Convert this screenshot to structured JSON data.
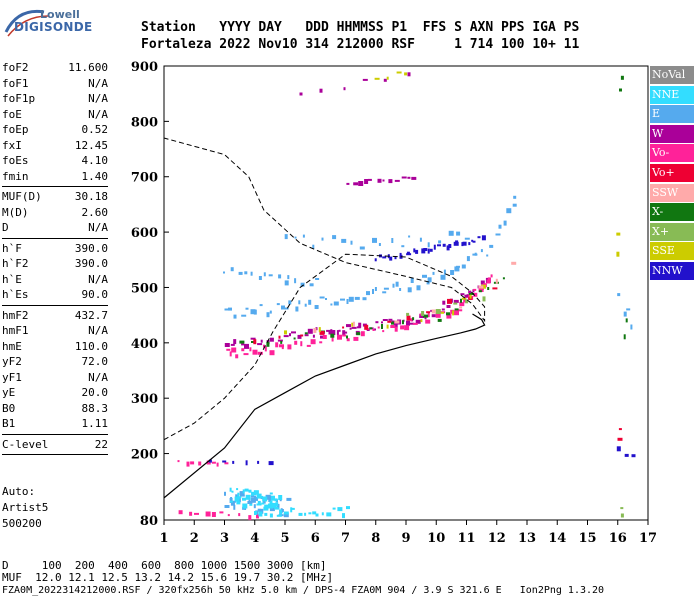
{
  "logo": {
    "top": "Lowell",
    "bottom": "DIGISONDE"
  },
  "header": {
    "line1": "Station   YYYY DAY   DDD HHMMSS P1  FFS S AXN PPS IGA PS",
    "line2": "Fortaleza 2022 Nov10 314 212000 RSF     1 714 100 10+ 11"
  },
  "params": {
    "group1": [
      {
        "label": "foF2",
        "value": "11.600"
      },
      {
        "label": "foF1",
        "value": "N/A"
      },
      {
        "label": "foF1p",
        "value": "N/A"
      },
      {
        "label": "foE",
        "value": "N/A"
      },
      {
        "label": "foEp",
        "value": "0.52"
      },
      {
        "label": "fxI",
        "value": "12.45"
      },
      {
        "label": "foEs",
        "value": "4.10"
      },
      {
        "label": "fmin",
        "value": "1.40"
      }
    ],
    "group2": [
      {
        "label": "MUF(D)",
        "value": "30.18"
      },
      {
        "label": "M(D)",
        "value": "2.60"
      },
      {
        "label": "D",
        "value": "N/A"
      }
    ],
    "group3": [
      {
        "label": "h`F",
        "value": "390.0"
      },
      {
        "label": "h`F2",
        "value": "390.0"
      },
      {
        "label": "h`E",
        "value": "N/A"
      },
      {
        "label": "h`Es",
        "value": "90.0"
      }
    ],
    "group4": [
      {
        "label": "hmF2",
        "value": "432.7"
      },
      {
        "label": "hmF1",
        "value": "N/A"
      },
      {
        "label": "hmE",
        "value": "110.0"
      },
      {
        "label": "yF2",
        "value": "72.0"
      },
      {
        "label": "yF1",
        "value": "N/A"
      },
      {
        "label": "yE",
        "value": "20.0"
      },
      {
        "label": "B0",
        "value": "88.3"
      },
      {
        "label": "B1",
        "value": "1.11"
      }
    ],
    "group5": [
      {
        "label": "C-level",
        "value": "22"
      }
    ]
  },
  "notes": {
    "line1": "Auto:",
    "line2": "Artist5",
    "line3": "500200"
  },
  "legend": [
    {
      "label": "NoVal",
      "color": "#8c8c8c"
    },
    {
      "label": "NNE",
      "color": "#33ddff"
    },
    {
      "label": "E",
      "color": "#55aaee"
    },
    {
      "label": "W",
      "color": "#aa0099"
    },
    {
      "label": "Vo-",
      "color": "#ff2299"
    },
    {
      "label": "Vo+",
      "color": "#ee0033"
    },
    {
      "label": "SSW",
      "color": "#ffaaaa"
    },
    {
      "label": "X-",
      "color": "#117711"
    },
    {
      "label": "X+",
      "color": "#88bb55"
    },
    {
      "label": "SSE",
      "color": "#cccc00"
    },
    {
      "label": "NNW",
      "color": "#2211cc"
    }
  ],
  "footer": {
    "line1": "D     100  200  400  600  800 1000 1500 3000 [km]",
    "line2": "MUF  12.0 12.1 12.5 13.2 14.2 15.6 19.7 30.2 [MHz]",
    "line3": "FZA0M_2022314212000.RSF / 320fx256h 50 kHz 5.0 km / DPS-4 FZA0M 904 / 3.9 S 321.6 E   Ion2Png 1.3.20"
  },
  "chart_data": {
    "type": "scatter",
    "xlim": [
      1,
      17
    ],
    "ylim": [
      80,
      900
    ],
    "x_ticks": [
      1,
      2,
      3,
      4,
      5,
      6,
      7,
      8,
      9,
      10,
      11,
      12,
      13,
      14,
      15,
      16,
      17
    ],
    "y_ticks": [
      80,
      200,
      300,
      400,
      500,
      600,
      700,
      800,
      900
    ],
    "profile_solid": {
      "x": [
        1.0,
        3.0,
        4.0,
        5.0,
        6.0,
        7.0,
        8.0,
        9.0,
        10.0,
        10.8,
        11.3,
        11.6,
        11.5,
        11.2
      ],
      "y": [
        120,
        210,
        280,
        310,
        340,
        360,
        380,
        395,
        408,
        418,
        425,
        432,
        442,
        452
      ]
    },
    "profile_dashed": {
      "x": [
        1.0,
        2.0,
        3.0,
        4.0,
        4.6,
        5.5,
        7.0,
        9.0,
        10.5,
        11.2,
        11.6,
        11.6,
        11.2,
        10.5,
        9.0,
        7.0,
        5.5,
        4.3,
        3.8,
        3.0,
        2.0,
        1.0
      ],
      "y": [
        225,
        255,
        300,
        360,
        420,
        500,
        560,
        555,
        520,
        490,
        465,
        440,
        470,
        500,
        520,
        545,
        580,
        640,
        700,
        740,
        755,
        770
      ]
    },
    "series": [
      {
        "name": "W",
        "color": "#aa0099",
        "segments": [
          {
            "x": [
              3.0,
              6.0,
              7.5,
              9.5,
              11.6
            ],
            "y": [
              400,
              420,
              430,
              445,
              510
            ],
            "n": 70,
            "s": 9
          },
          {
            "x": [
              7.0,
              9.2
            ],
            "y": [
              690,
              700
            ],
            "n": 12,
            "s": 4
          },
          {
            "x": [
              5.5,
              9.0
            ],
            "y": [
              850,
              890
            ],
            "n": 6,
            "s": 6
          }
        ]
      },
      {
        "name": "Vo-",
        "color": "#ff2299",
        "segments": [
          {
            "x": [
              3.0,
              5.0,
              8.0,
              10.5,
              11.8
            ],
            "y": [
              385,
              395,
              425,
              460,
              520
            ],
            "n": 60,
            "s": 9
          },
          {
            "x": [
              1.5,
              3.0
            ],
            "y": [
              188,
              186
            ],
            "n": 8,
            "s": 3
          },
          {
            "x": [
              1.5,
              4.0
            ],
            "y": [
              95,
              90
            ],
            "n": 10,
            "s": 4
          }
        ]
      },
      {
        "name": "E",
        "color": "#55aaee",
        "segments": [
          {
            "x": [
              3.0,
              6.0,
              9.0,
              11.8
            ],
            "y": [
              455,
              475,
              505,
              570
            ],
            "n": 55,
            "s": 10
          },
          {
            "x": [
              5.0,
              8.0,
              11.0
            ],
            "y": [
              590,
              580,
              600
            ],
            "n": 20,
            "s": 12
          },
          {
            "x": [
              3.0,
              6.0
            ],
            "y": [
              530,
              510
            ],
            "n": 15,
            "s": 10
          },
          {
            "x": [
              3.0,
              5.0
            ],
            "y": [
              120,
              105
            ],
            "n": 40,
            "s": 20
          },
          {
            "x": [
              12.0,
              12.6
            ],
            "y": [
              600,
              660
            ],
            "n": 6,
            "s": 8
          },
          {
            "x": [
              16.0,
              16.4
            ],
            "y": [
              480,
              440
            ],
            "n": 4,
            "s": 15
          }
        ]
      },
      {
        "name": "NNE",
        "color": "#33ddff",
        "segments": [
          {
            "x": [
              3.2,
              4.8
            ],
            "y": [
              130,
              110
            ],
            "n": 40,
            "s": 18
          },
          {
            "x": [
              4.0,
              7.0
            ],
            "y": [
              95,
              100
            ],
            "n": 20,
            "s": 8
          }
        ]
      },
      {
        "name": "NNW",
        "color": "#2211cc",
        "segments": [
          {
            "x": [
              8.0,
              11.5
            ],
            "y": [
              555,
              590
            ],
            "n": 30,
            "s": 5
          },
          {
            "x": [
              2.5,
              4.5
            ],
            "y": [
              190,
              188
            ],
            "n": 6,
            "s": 3
          },
          {
            "x": [
              16.0,
              16.4
            ],
            "y": [
              210,
              200
            ],
            "n": 3,
            "s": 8
          }
        ]
      },
      {
        "name": "X-",
        "color": "#117711",
        "segments": [
          {
            "x": [
              3.5,
              7.0,
              10.0,
              12.2
            ],
            "y": [
              400,
              420,
              450,
              520
            ],
            "n": 25,
            "s": 8
          },
          {
            "x": [
              16.1,
              16.1
            ],
            "y": [
              880,
              860
            ],
            "n": 2,
            "s": 4
          },
          {
            "x": [
              16.2,
              16.2
            ],
            "y": [
              440,
              420
            ],
            "n": 2,
            "s": 6
          }
        ]
      },
      {
        "name": "Vo+",
        "color": "#ee0033",
        "segments": [
          {
            "x": [
              4.0,
              8.0,
              11.8
            ],
            "y": [
              410,
              430,
              500
            ],
            "n": 12,
            "s": 6
          },
          {
            "x": [
              16.0,
              16.0
            ],
            "y": [
              250,
              230
            ],
            "n": 2,
            "s": 6
          }
        ]
      },
      {
        "name": "SSE",
        "color": "#cccc00",
        "segments": [
          {
            "x": [
              5.0,
              10.0,
              11.5
            ],
            "y": [
              420,
              445,
              500
            ],
            "n": 10,
            "s": 7
          },
          {
            "x": [
              8.0,
              9.0
            ],
            "y": [
              880,
              890
            ],
            "n": 4,
            "s": 4
          },
          {
            "x": [
              16.0,
              16.0
            ],
            "y": [
              600,
              560
            ],
            "n": 2,
            "s": 10
          }
        ]
      },
      {
        "name": "SSW",
        "color": "#ffaaaa",
        "segments": [
          {
            "x": [
              6.0,
              10.5,
              12.5
            ],
            "y": [
              430,
              460,
              545
            ],
            "n": 8,
            "s": 8
          }
        ]
      },
      {
        "name": "X+",
        "color": "#88bb55",
        "segments": [
          {
            "x": [
              9.0,
              11.5
            ],
            "y": [
              450,
              480
            ],
            "n": 6,
            "s": 6
          },
          {
            "x": [
              16.1,
              16.1
            ],
            "y": [
              100,
              90
            ],
            "n": 2,
            "s": 4
          }
        ]
      }
    ]
  }
}
